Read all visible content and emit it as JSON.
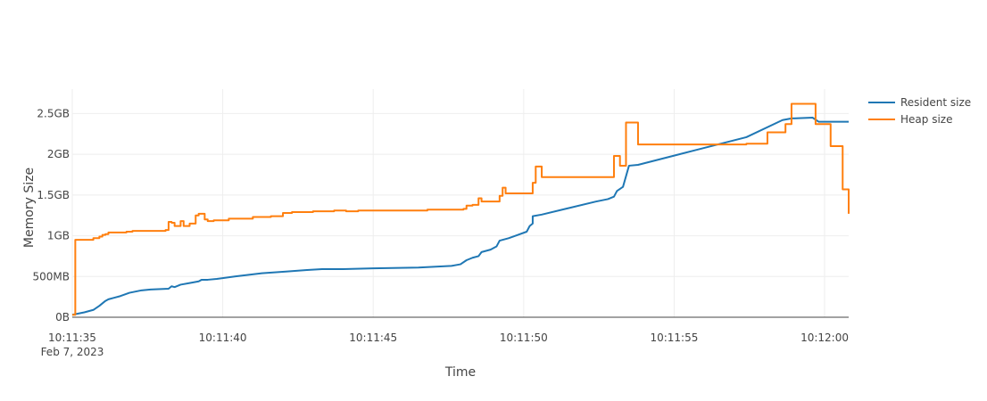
{
  "chart_data": {
    "type": "line",
    "title": "",
    "xlabel": "Time",
    "ylabel": "Memory Size",
    "x_unit": "seconds",
    "x_ticks": [
      {
        "value": "10:11:35.0",
        "label": "10:11:35",
        "sublabel": "Feb 7, 2023"
      },
      {
        "value": "10:11:40.0",
        "label": "10:11:40"
      },
      {
        "value": "10:11:45.0",
        "label": "10:11:45"
      },
      {
        "value": "10:11:50.0",
        "label": "10:11:50"
      },
      {
        "value": "10:11:55.0",
        "label": "10:11:55"
      },
      {
        "value": "10:12:00.0",
        "label": "10:12:00"
      }
    ],
    "xlim": [
      "10:11:35.0",
      "10:12:00.8"
    ],
    "y_unit": "GB",
    "y_ticks": [
      {
        "value": 0,
        "label": "0B"
      },
      {
        "value": 0.5,
        "label": "500MB"
      },
      {
        "value": 1.0,
        "label": "1GB"
      },
      {
        "value": 1.5,
        "label": "1.5GB"
      },
      {
        "value": 2.0,
        "label": "2GB"
      },
      {
        "value": 2.5,
        "label": "2.5GB"
      }
    ],
    "ylim": [
      0,
      2.8
    ],
    "grid": true,
    "legend_position": "top-right",
    "series": [
      {
        "name": "Resident size",
        "color": "#1f77b4",
        "shape": "linear",
        "points": [
          [
            "10:11:35.0",
            0.03
          ],
          [
            "10:11:35.4",
            0.06
          ],
          [
            "10:11:35.7",
            0.09
          ],
          [
            "10:11:35.9",
            0.14
          ],
          [
            "10:11:36.1",
            0.2
          ],
          [
            "10:11:36.2",
            0.22
          ],
          [
            "10:11:36.4",
            0.24
          ],
          [
            "10:11:36.6",
            0.26
          ],
          [
            "10:11:36.9",
            0.3
          ],
          [
            "10:11:37.3",
            0.33
          ],
          [
            "10:11:37.6",
            0.34
          ],
          [
            "10:11:38.2",
            0.35
          ],
          [
            "10:11:38.3",
            0.38
          ],
          [
            "10:11:38.4",
            0.37
          ],
          [
            "10:11:38.6",
            0.4
          ],
          [
            "10:11:38.9",
            0.42
          ],
          [
            "10:11:39.2",
            0.44
          ],
          [
            "10:11:39.3",
            0.46
          ],
          [
            "10:11:39.5",
            0.46
          ],
          [
            "10:11:39.8",
            0.47
          ],
          [
            "10:11:40.4",
            0.5
          ],
          [
            "10:11:41.3",
            0.54
          ],
          [
            "10:11:42.1",
            0.56
          ],
          [
            "10:11:42.8",
            0.58
          ],
          [
            "10:11:43.3",
            0.59
          ],
          [
            "10:11:44.0",
            0.59
          ],
          [
            "10:11:45.0",
            0.6
          ],
          [
            "10:11:46.5",
            0.61
          ],
          [
            "10:11:47.6",
            0.63
          ],
          [
            "10:11:47.9",
            0.65
          ],
          [
            "10:11:48.1",
            0.7
          ],
          [
            "10:11:48.3",
            0.73
          ],
          [
            "10:11:48.5",
            0.75
          ],
          [
            "10:11:48.6",
            0.8
          ],
          [
            "10:11:48.9",
            0.83
          ],
          [
            "10:11:49.1",
            0.87
          ],
          [
            "10:11:49.2",
            0.94
          ],
          [
            "10:11:49.5",
            0.97
          ],
          [
            "10:11:49.8",
            1.01
          ],
          [
            "10:11:50.1",
            1.05
          ],
          [
            "10:11:50.2",
            1.12
          ],
          [
            "10:11:50.3",
            1.15
          ],
          [
            "10:11:50.3",
            1.24
          ],
          [
            "10:11:50.6",
            1.26
          ],
          [
            "10:11:51.5",
            1.34
          ],
          [
            "10:11:52.4",
            1.42
          ],
          [
            "10:11:52.8",
            1.45
          ],
          [
            "10:11:53.0",
            1.48
          ],
          [
            "10:11:53.1",
            1.55
          ],
          [
            "10:11:53.3",
            1.6
          ],
          [
            "10:11:53.5",
            1.86
          ],
          [
            "10:11:53.8",
            1.87
          ],
          [
            "10:11:55.7",
            2.05
          ],
          [
            "10:11:57.4",
            2.21
          ],
          [
            "10:11:58.6",
            2.42
          ],
          [
            "10:11:58.9",
            2.44
          ],
          [
            "10:11:59.6",
            2.45
          ],
          [
            "10:11:59.8",
            2.4
          ],
          [
            "10:12:00.3",
            2.4
          ],
          [
            "10:12:00.8",
            2.4
          ]
        ]
      },
      {
        "name": "Heap size",
        "color": "#ff7f0e",
        "shape": "step",
        "points": [
          [
            "10:11:35.0",
            0.03
          ],
          [
            "10:11:35.1",
            0.95
          ],
          [
            "10:11:35.7",
            0.97
          ],
          [
            "10:11:35.9",
            0.99
          ],
          [
            "10:11:36.0",
            1.01
          ],
          [
            "10:11:36.1",
            1.02
          ],
          [
            "10:11:36.2",
            1.04
          ],
          [
            "10:11:36.8",
            1.05
          ],
          [
            "10:11:37.0",
            1.06
          ],
          [
            "10:11:38.1",
            1.07
          ],
          [
            "10:11:38.2",
            1.17
          ],
          [
            "10:11:38.3",
            1.16
          ],
          [
            "10:11:38.4",
            1.12
          ],
          [
            "10:11:38.6",
            1.18
          ],
          [
            "10:11:38.7",
            1.12
          ],
          [
            "10:11:38.9",
            1.15
          ],
          [
            "10:11:39.1",
            1.25
          ],
          [
            "10:11:39.2",
            1.27
          ],
          [
            "10:11:39.4",
            1.2
          ],
          [
            "10:11:39.5",
            1.18
          ],
          [
            "10:11:39.7",
            1.19
          ],
          [
            "10:11:40.2",
            1.21
          ],
          [
            "10:11:41.0",
            1.23
          ],
          [
            "10:11:41.6",
            1.24
          ],
          [
            "10:11:42.0",
            1.28
          ],
          [
            "10:11:42.3",
            1.29
          ],
          [
            "10:11:43.0",
            1.3
          ],
          [
            "10:11:43.7",
            1.31
          ],
          [
            "10:11:44.1",
            1.3
          ],
          [
            "10:11:44.5",
            1.31
          ],
          [
            "10:11:45.5",
            1.31
          ],
          [
            "10:11:46.8",
            1.32
          ],
          [
            "10:11:47.8",
            1.32
          ],
          [
            "10:11:48.0",
            1.33
          ],
          [
            "10:11:48.1",
            1.37
          ],
          [
            "10:11:48.3",
            1.38
          ],
          [
            "10:11:48.5",
            1.46
          ],
          [
            "10:11:48.6",
            1.42
          ],
          [
            "10:11:49.2",
            1.49
          ],
          [
            "10:11:49.3",
            1.59
          ],
          [
            "10:11:49.4",
            1.52
          ],
          [
            "10:11:50.1",
            1.52
          ],
          [
            "10:11:50.3",
            1.65
          ],
          [
            "10:11:50.4",
            1.85
          ],
          [
            "10:11:50.6",
            1.72
          ],
          [
            "10:11:51.0",
            1.72
          ],
          [
            "10:11:53.0",
            1.98
          ],
          [
            "10:11:53.2",
            1.86
          ],
          [
            "10:11:53.4",
            2.39
          ],
          [
            "10:11:53.8",
            2.12
          ],
          [
            "10:11:57.4",
            2.13
          ],
          [
            "10:11:58.1",
            2.27
          ],
          [
            "10:11:58.7",
            2.37
          ],
          [
            "10:11:58.9",
            2.62
          ],
          [
            "10:11:59.7",
            2.37
          ],
          [
            "10:11:59.9",
            2.37
          ],
          [
            "10:12:00.2",
            2.1
          ],
          [
            "10:12:00.6",
            1.57
          ],
          [
            "10:12:00.8",
            1.27
          ]
        ]
      }
    ]
  }
}
